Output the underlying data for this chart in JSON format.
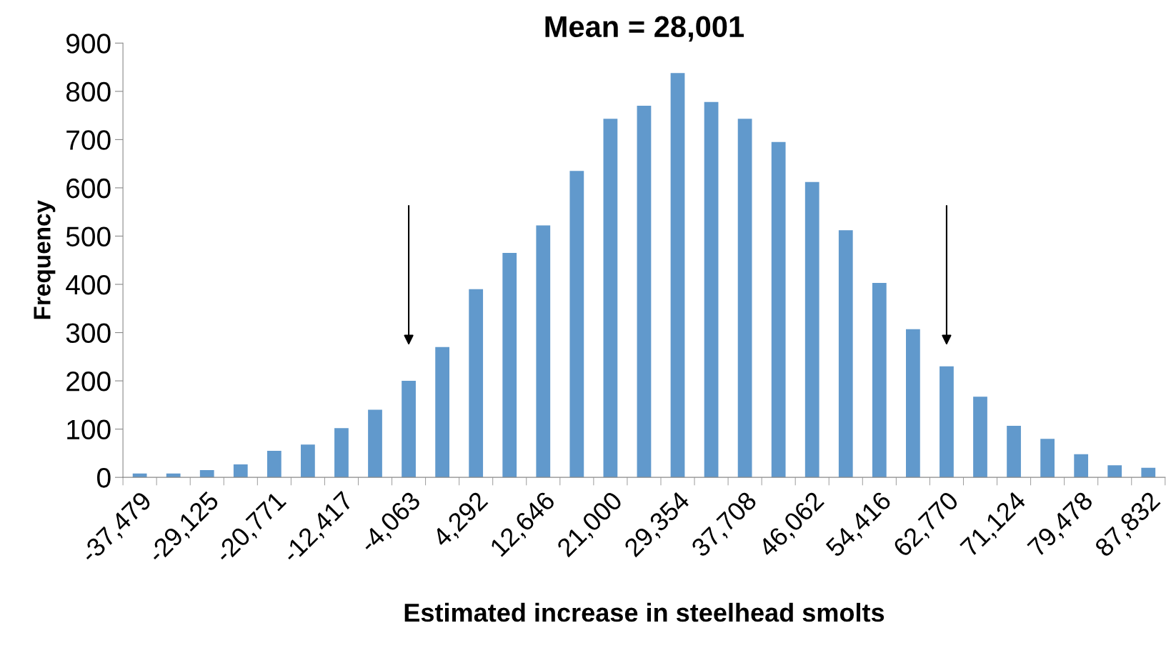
{
  "chart_data": {
    "type": "bar",
    "title": "Mean = 28,001",
    "xlabel": "Estimated increase in steelhead smolts",
    "ylabel": "Frequency",
    "categories": [
      "-37,479",
      null,
      "-29,125",
      null,
      "-20,771",
      null,
      "-12,417",
      null,
      "-4,063",
      null,
      "4,292",
      null,
      "12,646",
      null,
      "21,000",
      null,
      "29,354",
      null,
      "37,708",
      null,
      "46,062",
      null,
      "54,416",
      null,
      "62,770",
      null,
      "71,124",
      null,
      "79,478",
      null,
      "87,832"
    ],
    "values": [
      8,
      8,
      15,
      27,
      55,
      68,
      102,
      140,
      200,
      270,
      390,
      465,
      522,
      635,
      743,
      770,
      838,
      778,
      743,
      695,
      612,
      512,
      403,
      307,
      230,
      167,
      107,
      80,
      48,
      25,
      20
    ],
    "color": "#6199cc",
    "ylim": [
      0,
      900
    ],
    "yticks": [
      0,
      100,
      200,
      300,
      400,
      500,
      600,
      700,
      800,
      900
    ],
    "grid": false,
    "legend": false
  }
}
